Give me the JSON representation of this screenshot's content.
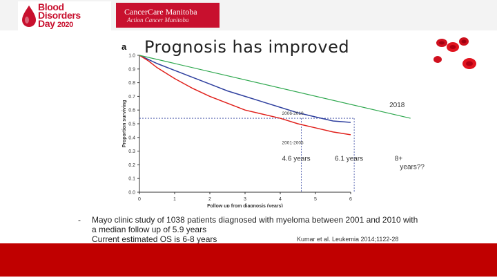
{
  "header": {
    "org_logo_lines": [
      "Blood",
      "Disorders",
      "Day"
    ],
    "org_logo_year": "2020",
    "partner_logo_line1": "CancerCare Manitoba",
    "partner_logo_line2": "Action Cancer Manitoba"
  },
  "slide": {
    "title": "Prognosis has improved",
    "panel_label": "a",
    "bullet": "Mayo clinic study of 1038 patients diagnosed with myeloma between 2001 and 2010 with a median follow up of 5.9 years",
    "bullet_line2": "Current estimated OS is 6-8 years",
    "reference": "Kumar et al. Leukemia 2014;1122-28"
  },
  "colors": {
    "series_2006_2010": "#2e3f9e",
    "series_2001_2005": "#e0201b",
    "trend_2018": "#2fa84f",
    "red_bar": "#c00000",
    "brand_red": "#c8102e"
  },
  "chart_data": {
    "type": "line",
    "xlabel": "Follow up from diagnosis (years)",
    "ylabel": "Proportion surviving",
    "xlim": [
      0,
      6
    ],
    "ylim": [
      0,
      1.0
    ],
    "xticks": [
      "0",
      "1",
      "2",
      "3",
      "4",
      "5",
      "6"
    ],
    "yticks": [
      "0.0",
      "0.1",
      "0.2",
      "0.3",
      "0.4",
      "0.5",
      "0.6",
      "0.7",
      "0.8",
      "0.9",
      "1.0"
    ],
    "series": [
      {
        "name": "2006-2010",
        "x": [
          0,
          0.25,
          0.5,
          1,
          1.5,
          2,
          2.5,
          3,
          3.5,
          4,
          4.5,
          5,
          5.5,
          6
        ],
        "y": [
          1.0,
          0.97,
          0.94,
          0.89,
          0.84,
          0.79,
          0.74,
          0.7,
          0.66,
          0.62,
          0.58,
          0.55,
          0.52,
          0.51
        ]
      },
      {
        "name": "2001-2005",
        "x": [
          0,
          0.25,
          0.5,
          1,
          1.5,
          2,
          2.5,
          3,
          3.5,
          4,
          4.5,
          5,
          5.5,
          6
        ],
        "y": [
          1.0,
          0.96,
          0.91,
          0.83,
          0.76,
          0.7,
          0.65,
          0.6,
          0.57,
          0.54,
          0.5,
          0.47,
          0.44,
          0.42
        ]
      },
      {
        "name": "2018",
        "x": [
          0,
          7.7
        ],
        "y": [
          1.0,
          0.54
        ]
      }
    ],
    "annotations": [
      {
        "text": "2018",
        "x": 7.1,
        "y": 0.62
      },
      {
        "text": "4.6 years",
        "x": 4.05,
        "y": 0.23
      },
      {
        "text": "6.1 years",
        "x": 5.55,
        "y": 0.23
      },
      {
        "text": "8+",
        "x": 7.25,
        "y": 0.23
      },
      {
        "text": "years??",
        "x": 7.4,
        "y": 0.17
      }
    ],
    "reference_lines": {
      "y": 0.54,
      "x_marks": [
        4.6,
        6.1
      ]
    }
  }
}
